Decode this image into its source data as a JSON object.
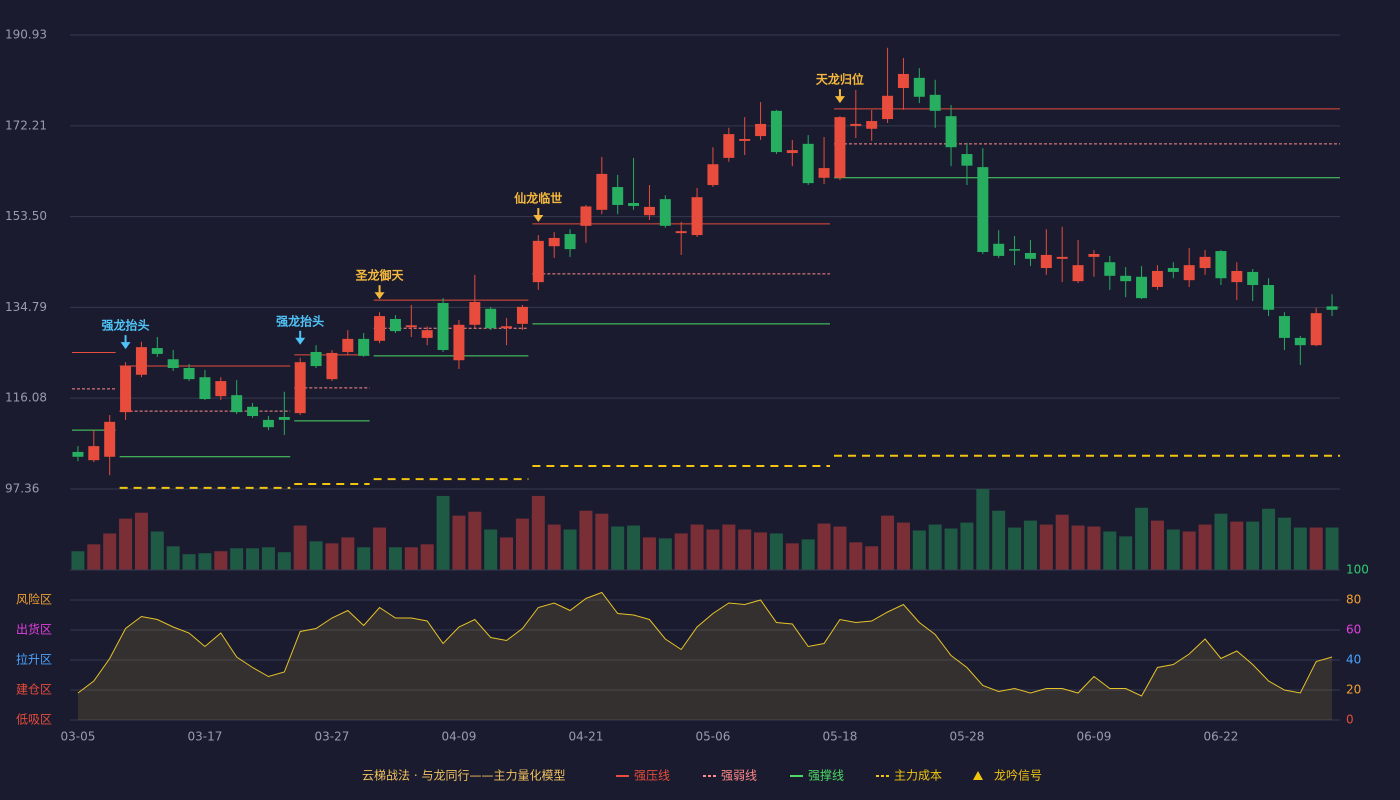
{
  "chart_data": {
    "type": "candlestick",
    "categories": [
      "03-05",
      null,
      null,
      null,
      null,
      null,
      null,
      null,
      "03-17",
      null,
      null,
      null,
      null,
      null,
      null,
      null,
      "03-27",
      null,
      null,
      null,
      null,
      null,
      null,
      null,
      "04-09",
      null,
      null,
      null,
      null,
      null,
      null,
      null,
      "04-21",
      null,
      null,
      null,
      null,
      null,
      null,
      null,
      "05-06",
      null,
      null,
      null,
      null,
      null,
      null,
      null,
      "05-18",
      null,
      null,
      null,
      null,
      null,
      null,
      null,
      "05-28",
      null,
      null,
      null,
      null,
      null,
      null,
      null,
      "06-09",
      null,
      null,
      null,
      null,
      null,
      null,
      null,
      "06-22",
      null,
      null,
      null,
      null,
      null,
      null,
      null
    ],
    "open": [
      105.0,
      103.3,
      104.0,
      113.2,
      120.9,
      126.4,
      124.1,
      122.3,
      120.4,
      116.5,
      116.7,
      114.3,
      111.6,
      112.2,
      113.0,
      125.6,
      120.0,
      125.6,
      128.3,
      127.9,
      132.4,
      130.7,
      128.5,
      135.7,
      123.9,
      131.2,
      134.5,
      130.5,
      131.4,
      140.0,
      147.4,
      149.9,
      151.6,
      154.9,
      159.6,
      156.3,
      153.8,
      157.1,
      150.1,
      149.7,
      160.0,
      165.6,
      169.1,
      170.1,
      175.3,
      166.6,
      168.5,
      161.5,
      161.5,
      172.2,
      171.6,
      173.6,
      180.0,
      182.1,
      178.6,
      174.2,
      166.4,
      163.7,
      147.9,
      146.8,
      146.0,
      142.9,
      144.8,
      140.2,
      145.2,
      144.1,
      141.3,
      141.1,
      139.0,
      142.9,
      140.4,
      142.9,
      146.4,
      140.0,
      142.1,
      139.4,
      133.0,
      128.5,
      127.0,
      135.0
    ],
    "high": [
      106.2,
      109.5,
      112.6,
      123.5,
      127.7,
      128.7,
      126.0,
      123.1,
      121.9,
      120.4,
      119.8,
      115.1,
      112.4,
      117.4,
      124.4,
      127.0,
      126.0,
      130.1,
      129.5,
      133.8,
      133.2,
      135.3,
      130.9,
      136.7,
      132.2,
      141.5,
      134.9,
      132.6,
      135.3,
      149.7,
      150.3,
      150.9,
      155.9,
      165.8,
      162.1,
      165.6,
      160.0,
      157.9,
      152.4,
      159.4,
      167.8,
      171.8,
      174.0,
      177.1,
      175.5,
      169.3,
      170.3,
      169.9,
      174.2,
      179.6,
      175.5,
      188.3,
      186.2,
      184.1,
      181.7,
      176.5,
      168.7,
      167.6,
      150.7,
      149.5,
      148.7,
      150.9,
      151.4,
      148.7,
      146.6,
      145.4,
      143.1,
      143.3,
      143.5,
      144.1,
      147.0,
      146.6,
      146.6,
      144.1,
      142.7,
      140.8,
      133.8,
      128.9,
      134.7,
      137.5
    ],
    "low": [
      103.1,
      102.9,
      100.2,
      111.6,
      120.4,
      124.6,
      121.7,
      119.6,
      115.7,
      115.7,
      112.8,
      112.0,
      109.5,
      108.5,
      112.6,
      122.3,
      119.6,
      125.0,
      124.6,
      127.4,
      129.5,
      128.7,
      127.0,
      125.6,
      122.1,
      130.5,
      130.1,
      127.0,
      130.1,
      138.4,
      145.0,
      145.2,
      148.1,
      154.0,
      154.0,
      154.9,
      152.8,
      151.2,
      145.6,
      149.3,
      159.6,
      164.8,
      166.2,
      169.3,
      166.4,
      163.9,
      160.0,
      160.2,
      161.0,
      169.7,
      169.1,
      172.8,
      175.5,
      176.9,
      171.8,
      163.9,
      160.0,
      145.8,
      145.0,
      143.5,
      143.3,
      141.5,
      140.0,
      139.8,
      141.1,
      138.4,
      136.9,
      136.5,
      138.4,
      140.8,
      139.0,
      141.5,
      139.4,
      136.3,
      136.1,
      133.0,
      126.0,
      122.9,
      126.8,
      133.0
    ],
    "close": [
      104.0,
      106.2,
      111.2,
      122.7,
      126.6,
      125.2,
      122.3,
      120.0,
      115.9,
      119.6,
      113.2,
      112.4,
      110.1,
      111.6,
      123.5,
      122.7,
      125.4,
      128.3,
      124.8,
      133.0,
      129.9,
      131.1,
      130.1,
      126.0,
      131.2,
      135.9,
      130.5,
      130.9,
      134.9,
      148.5,
      149.1,
      146.8,
      155.6,
      162.3,
      155.9,
      155.7,
      155.5,
      151.6,
      150.5,
      157.5,
      164.3,
      170.5,
      169.5,
      172.6,
      166.8,
      167.2,
      160.4,
      163.5,
      174.0,
      172.6,
      173.2,
      178.4,
      182.9,
      178.2,
      175.3,
      167.8,
      164.0,
      146.2,
      145.4,
      146.6,
      144.8,
      145.6,
      145.2,
      143.5,
      145.8,
      141.3,
      140.2,
      136.7,
      142.3,
      142.1,
      143.5,
      145.2,
      140.8,
      142.3,
      139.4,
      134.3,
      128.5,
      127.0,
      133.6,
      134.3
    ],
    "up_color": "#e74c3c",
    "down_color": "#27ae60",
    "ylim": [
      97.36,
      190.93
    ],
    "yticks": [
      97.36,
      116.08,
      134.79,
      {
        "value": 153.5,
        "label": "153.50"
      },
      172.21,
      190.93
    ],
    "grid": true,
    "levels": [
      {
        "from": 0,
        "to": 2,
        "strong_resistance": 125.5,
        "pivot": 118.0,
        "strong_support": 109.5
      },
      {
        "from": 3,
        "to": 13,
        "strong_resistance": 122.7,
        "pivot": 113.4,
        "strong_support": 104.0,
        "cost": 97.6
      },
      {
        "from": 14,
        "to": 18,
        "strong_resistance": 125.0,
        "pivot": 118.2,
        "strong_support": 111.4,
        "cost": 98.4
      },
      {
        "from": 19,
        "to": 28,
        "strong_resistance": 136.3,
        "pivot": 130.5,
        "strong_support": 124.8,
        "cost": 99.4
      },
      {
        "from": 29,
        "to": 47,
        "strong_resistance": 152.0,
        "pivot": 141.7,
        "strong_support": 131.4,
        "cost": 102.1
      },
      {
        "from": 48,
        "to": 79,
        "strong_resistance": 175.7,
        "pivot": 168.5,
        "strong_support": 161.5,
        "cost": 104.2
      }
    ],
    "signals": [
      {
        "index": 3,
        "label": "强龙抬头",
        "color": "#4fc3f7"
      },
      {
        "index": 14,
        "label": "强龙抬头",
        "color": "#4fc3f7"
      },
      {
        "index": 19,
        "label": "圣龙御天",
        "color": "#f5b83d"
      },
      {
        "index": 29,
        "label": "仙龙临世",
        "color": "#f5b83d"
      },
      {
        "index": 48,
        "label": "天龙归位",
        "color": "#f5b83d"
      }
    ],
    "volume": [
      19,
      26,
      37,
      52,
      58,
      39,
      24,
      16,
      17,
      19,
      22,
      22,
      23,
      18,
      45,
      29,
      27,
      33,
      23,
      43,
      23,
      23,
      26,
      75,
      55,
      59,
      41,
      33,
      52,
      75,
      46,
      41,
      60,
      57,
      44,
      45,
      33,
      32,
      37,
      46,
      41,
      46,
      41,
      38,
      37,
      27,
      31,
      47,
      44,
      28,
      24,
      55,
      48,
      40,
      46,
      42,
      48,
      82,
      60,
      43,
      50,
      46,
      56,
      45,
      44,
      39,
      34,
      63,
      50,
      41,
      39,
      46,
      57,
      49,
      49,
      62,
      53,
      43,
      43,
      43
    ],
    "volume_up_color": "#7a2f37",
    "volume_down_color": "#1f5a45",
    "indicator": {
      "values": [
        18,
        26,
        41,
        61,
        69,
        67,
        62,
        58,
        49,
        58,
        42,
        35,
        29,
        32,
        59,
        61,
        68,
        73,
        63,
        75,
        68,
        68,
        66,
        51,
        62,
        67,
        55,
        53,
        61,
        75,
        78,
        73,
        81,
        85,
        71,
        70,
        67,
        54,
        47,
        62,
        71,
        78,
        77,
        80,
        65,
        64,
        49,
        51,
        67,
        65,
        66,
        72,
        77,
        65,
        57,
        43,
        35,
        23,
        19,
        21,
        18,
        21,
        21,
        18,
        29,
        21,
        21,
        16,
        35,
        37,
        44,
        54,
        41,
        46,
        37,
        26,
        20,
        18,
        39,
        42
      ],
      "color": "#e6c229",
      "ylim": [
        0,
        100
      ],
      "yticks": [
        {
          "value": 0,
          "color": "#e74c3c"
        },
        {
          "value": 20,
          "color": "#f0a030"
        },
        {
          "value": 40,
          "color": "#4aa3ff"
        },
        {
          "value": 60,
          "color": "#e040e0"
        },
        {
          "value": 80,
          "color": "#f0a030"
        },
        {
          "value": 100,
          "color": "#2ecc71"
        }
      ],
      "zones": [
        {
          "label": "风险区",
          "value": 80,
          "color": "#f0a030"
        },
        {
          "label": "出货区",
          "value": 60,
          "color": "#e040e0"
        },
        {
          "label": "拉升区",
          "value": 40,
          "color": "#4aa3ff"
        },
        {
          "label": "建仓区",
          "value": 20,
          "color": "#e74c3c"
        },
        {
          "label": "低吸区",
          "value": 0,
          "color": "#e74c3c"
        }
      ]
    },
    "model_title": "云梯战法 · 与龙同行——主力量化模型",
    "legend": [
      {
        "label": "强压线",
        "color": "#e74c3c",
        "style": "solid"
      },
      {
        "label": "强弱线",
        "color": "#ff8a8a",
        "style": "dashed"
      },
      {
        "label": "强撑线",
        "color": "#4cd964",
        "style": "solid"
      },
      {
        "label": "主力成本",
        "color": "#f1c40f",
        "style": "dashed"
      },
      {
        "label": "龙吟信号",
        "color": "#f1c40f",
        "style": "triangle"
      }
    ]
  }
}
